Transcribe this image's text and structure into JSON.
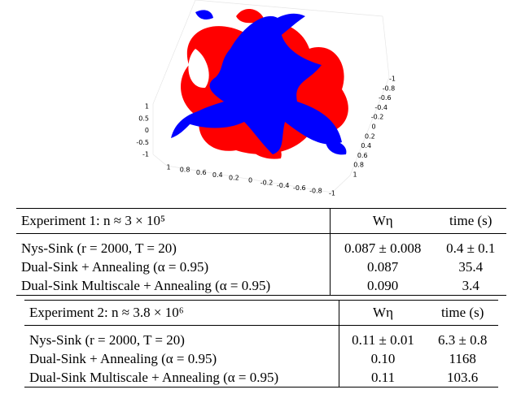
{
  "plot": {
    "z_ticks": [
      "1",
      "0.5",
      "0",
      "-0.5",
      "-1"
    ],
    "x_ticks": [
      "1",
      "0.8",
      "0.6",
      "0.4",
      "0.2",
      "0",
      "-0.2",
      "-0.4",
      "-0.6",
      "-0.8",
      "-1"
    ],
    "y_ticks": [
      "-1",
      "-0.8",
      "-0.6",
      "-0.4",
      "-0.2",
      "0",
      "0.2",
      "0.4",
      "0.6",
      "0.8",
      "1"
    ]
  },
  "tables": [
    {
      "header": [
        "Experiment 1: n ≈ 3 × 10⁵",
        "Wη",
        "time (s)"
      ],
      "rows": [
        [
          "Nys-Sink (r = 2000, T = 20)",
          "0.087 ± 0.008",
          "0.4 ± 0.1"
        ],
        [
          "Dual-Sink + Annealing (α = 0.95)",
          "0.087",
          "35.4"
        ],
        [
          "Dual-Sink Multiscale + Annealing (α = 0.95)",
          "0.090",
          "3.4"
        ]
      ]
    },
    {
      "header": [
        "Experiment 2: n ≈ 3.8 × 10⁶",
        "Wη",
        "time (s)"
      ],
      "rows": [
        [
          "Nys-Sink (r = 2000, T = 20)",
          "0.11 ± 0.01",
          "6.3 ± 0.8"
        ],
        [
          "Dual-Sink + Annealing (α = 0.95)",
          "0.10",
          "1168"
        ],
        [
          "Dual-Sink Multiscale + Annealing (α = 0.95)",
          "0.11",
          "103.6"
        ]
      ]
    }
  ]
}
